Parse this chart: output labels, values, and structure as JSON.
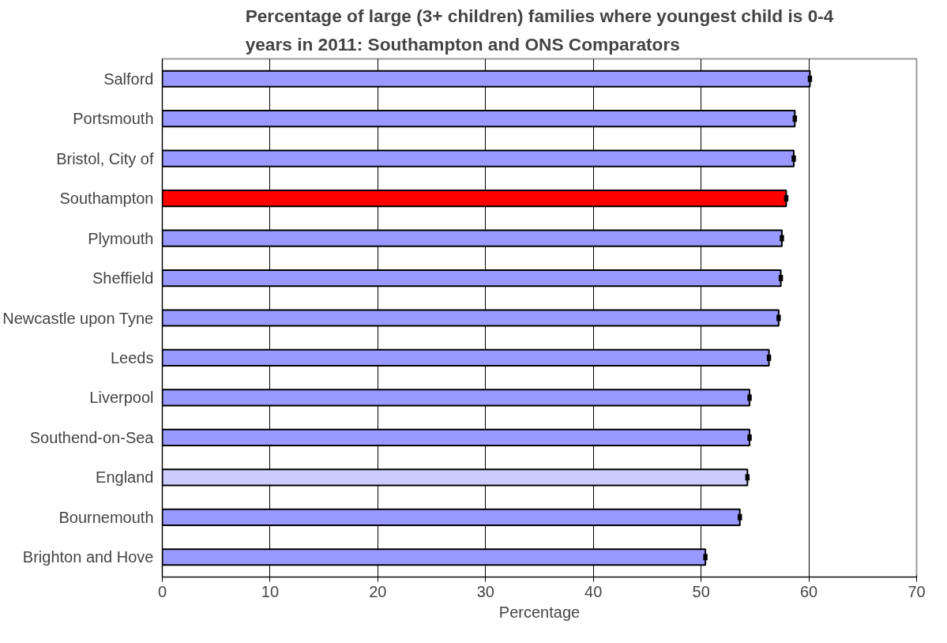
{
  "chart_data": {
    "type": "bar",
    "orientation": "horizontal",
    "title": "Percentage of large (3+ children) families where youngest child is 0-4\nyears in 2011: Southampton and ONS Comparators",
    "xlabel": "Percentage",
    "categories": [
      "Salford",
      "Portsmouth",
      "Bristol, City of",
      "Southampton",
      "Plymouth",
      "Sheffield",
      "Newcastle upon Tyne",
      "Leeds",
      "Liverpool",
      "Southend-on-Sea",
      "England",
      "Bournemouth",
      "Brighton and Hove"
    ],
    "values": [
      60.1,
      58.7,
      58.6,
      57.9,
      57.5,
      57.4,
      57.2,
      56.3,
      54.5,
      54.5,
      54.3,
      53.6,
      50.4
    ],
    "errors": [
      0.2,
      0.2,
      0.2,
      0.2,
      0.2,
      0.2,
      0.2,
      0.2,
      0.2,
      0.2,
      0.2,
      0.2,
      0.2
    ],
    "colors": [
      "#9999ff",
      "#9999ff",
      "#9999ff",
      "#ff0000",
      "#9999ff",
      "#9999ff",
      "#9999ff",
      "#9999ff",
      "#9999ff",
      "#9999ff",
      "#ccccff",
      "#9999ff",
      "#9999ff"
    ],
    "xlim": [
      0,
      70
    ],
    "xticks": [
      0,
      10,
      20,
      30,
      40,
      50,
      60,
      70
    ],
    "grid": "x"
  }
}
